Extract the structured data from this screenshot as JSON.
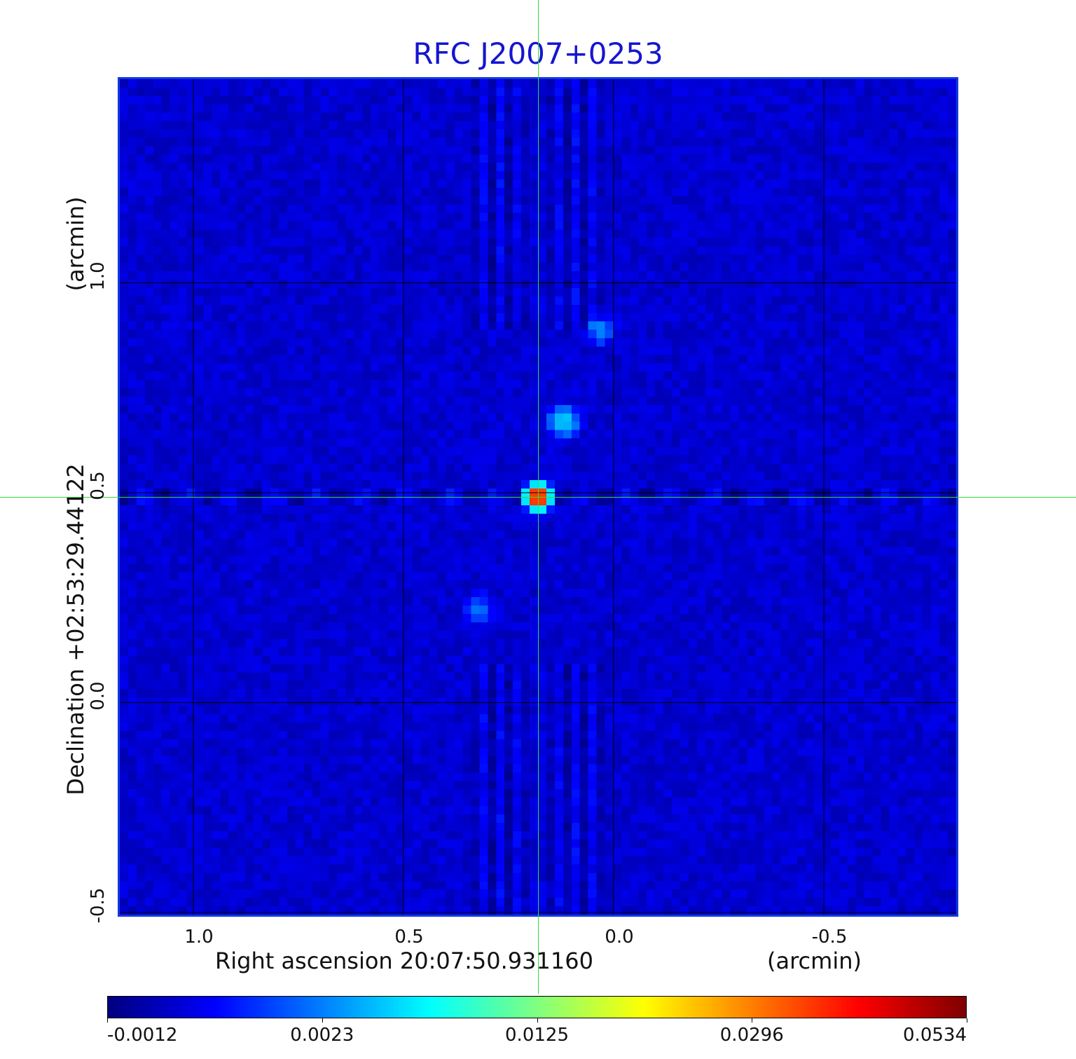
{
  "chart_data": {
    "type": "heatmap",
    "title": "RFC J2007+0253",
    "xlabel": "Right ascension  20:07:50.931160",
    "xunit": "(arcmin)",
    "ylabel": "Declination  +02:53:29.44122",
    "yunit": "(arcmin)",
    "x_ticks": [
      "1.0",
      "0.5",
      "0.0",
      "-0.5"
    ],
    "x_tick_values": [
      1.0,
      0.5,
      0.0,
      -0.5
    ],
    "y_ticks": [
      "1.0",
      "0.5",
      "0.0",
      "-0.5"
    ],
    "y_tick_values": [
      1.0,
      0.5,
      0.0,
      -0.5
    ],
    "xlim": [
      1.18,
      -0.82
    ],
    "ylim": [
      -0.51,
      1.49
    ],
    "grid": true,
    "crosshair": {
      "x": 0.18,
      "y": 0.49
    },
    "peak": {
      "x": 0.18,
      "y": 0.49,
      "value": 0.0534
    },
    "secondary_features": [
      {
        "x": 0.12,
        "y": 0.67,
        "value": 0.006
      },
      {
        "x": 0.03,
        "y": 0.89,
        "value": 0.003
      },
      {
        "x": 0.32,
        "y": 0.22,
        "value": 0.0025
      }
    ],
    "colorbar": {
      "colormap": "jet",
      "ticks": [
        "-0.0012",
        "0.0023",
        "0.0125",
        "0.0296",
        "0.0534"
      ],
      "tick_values": [
        -0.0012,
        0.0023,
        0.0125,
        0.0296,
        0.0534
      ]
    },
    "colors": {
      "title": "#1515d0",
      "frame": "#1438e0",
      "crosshair": "#33dd33"
    }
  }
}
